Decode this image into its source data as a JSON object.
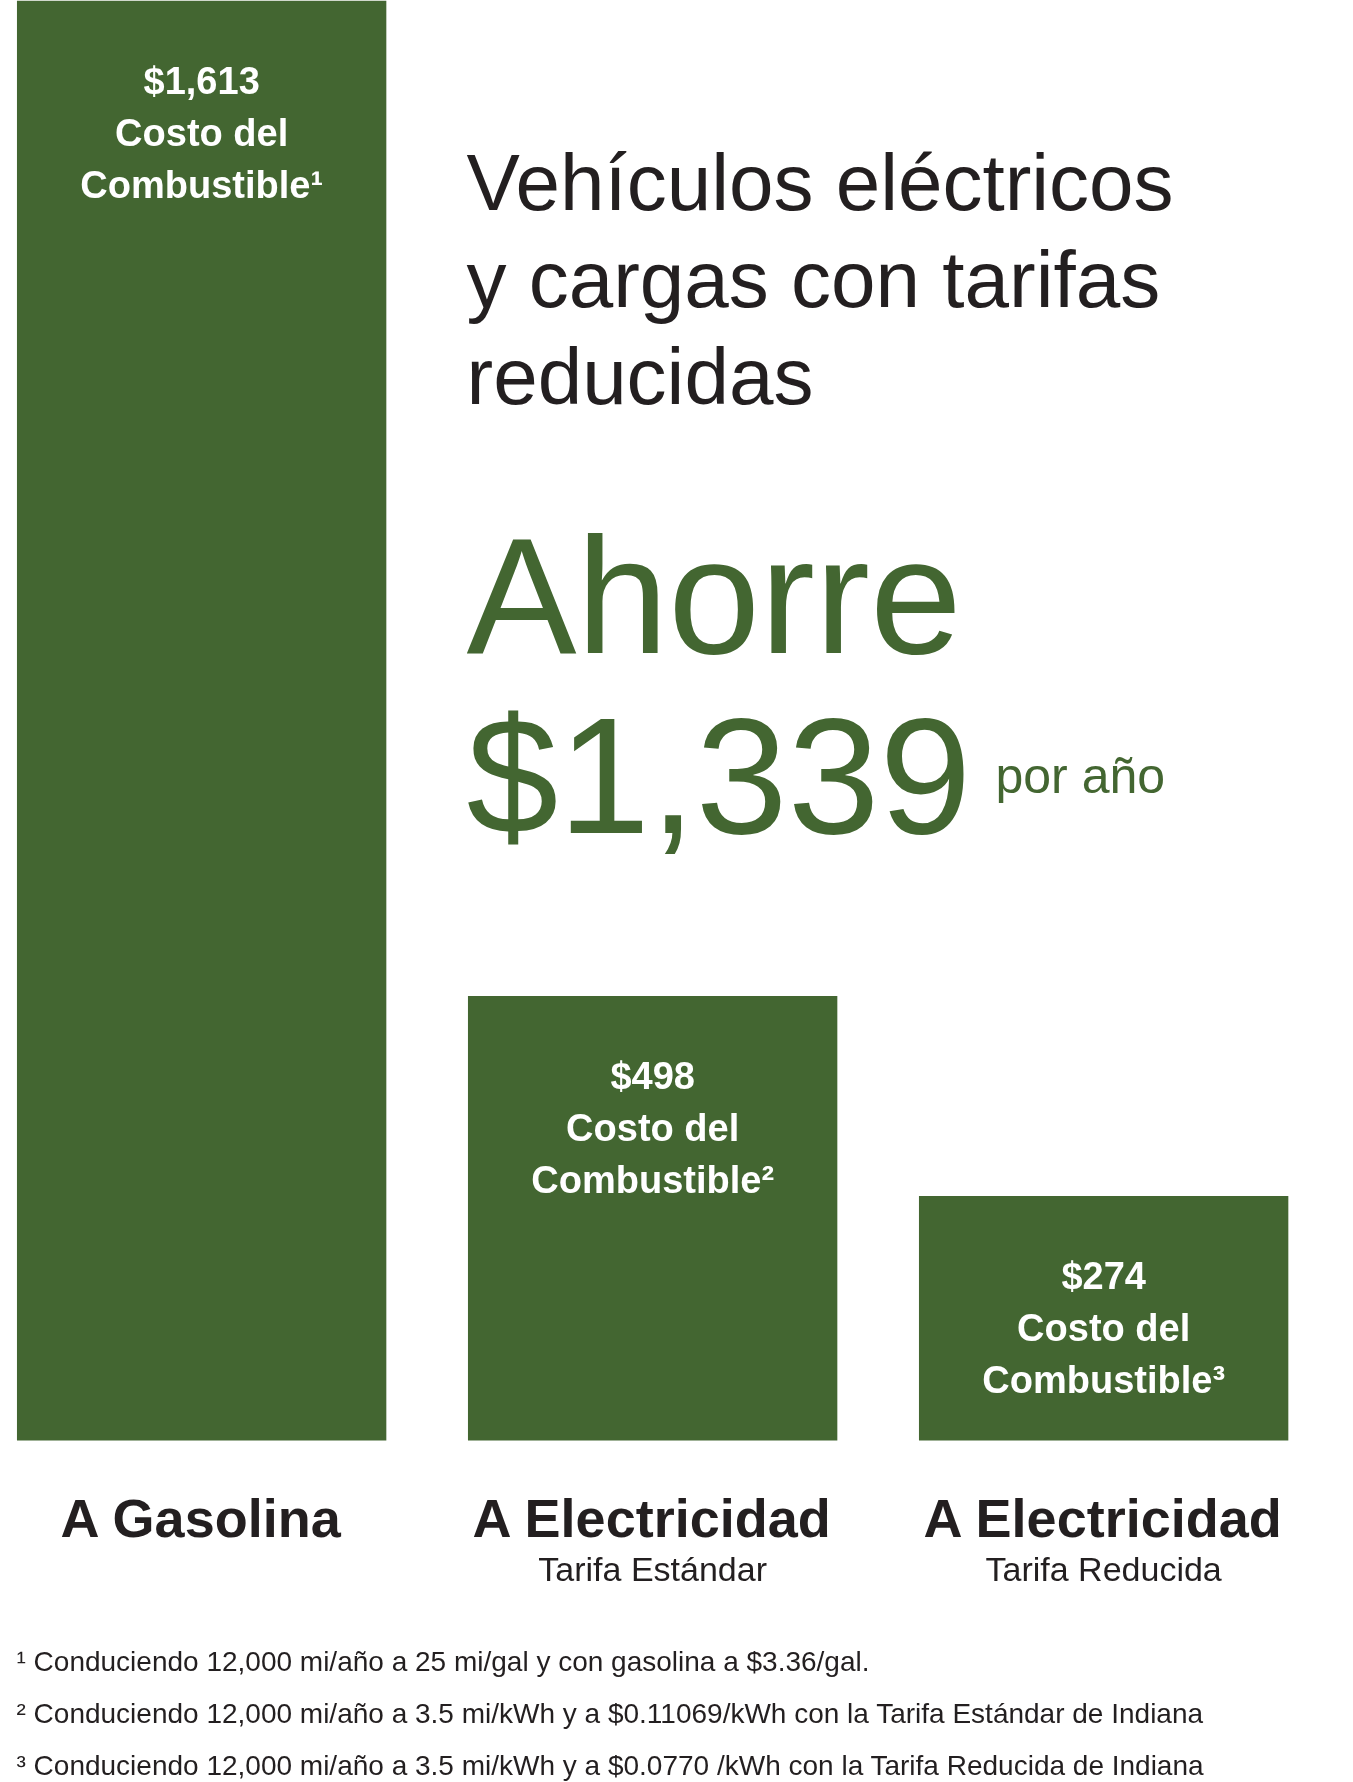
{
  "chart_data": {
    "type": "bar",
    "title": "Vehículos eléctricos y cargas con tarifas reducidas",
    "subtitle": "Ahorre $1,339",
    "categories": [
      "A Gasolina",
      "A Electricidad\nTarifa Estándar",
      "A Electricidad\nTarifa Reducida"
    ],
    "values": [
      1613,
      498,
      274
    ],
    "color": "#436631",
    "value_labels": [
      "$1,613 Costo del Combustible¹",
      "$498 Costo del Combustible²",
      "$274 Costo del Combustible³"
    ],
    "annotations": [
      "por año",
      "¹ Conduciendo 12,000 mi/año a 25 mi/gal y con gasolina a $3.36/gal.",
      "² Conduciendo 12,000 mi/año a 3.5 mi/kWh y a $0.11069/kWh con la Tarifa Estándar de Indiana",
      "³ Conduciendo 12,000 mi/año a 3.5 mi/kWh y a $0.0770 /kWh con la Tarifa Reducida de Indiana"
    ]
  }
}
